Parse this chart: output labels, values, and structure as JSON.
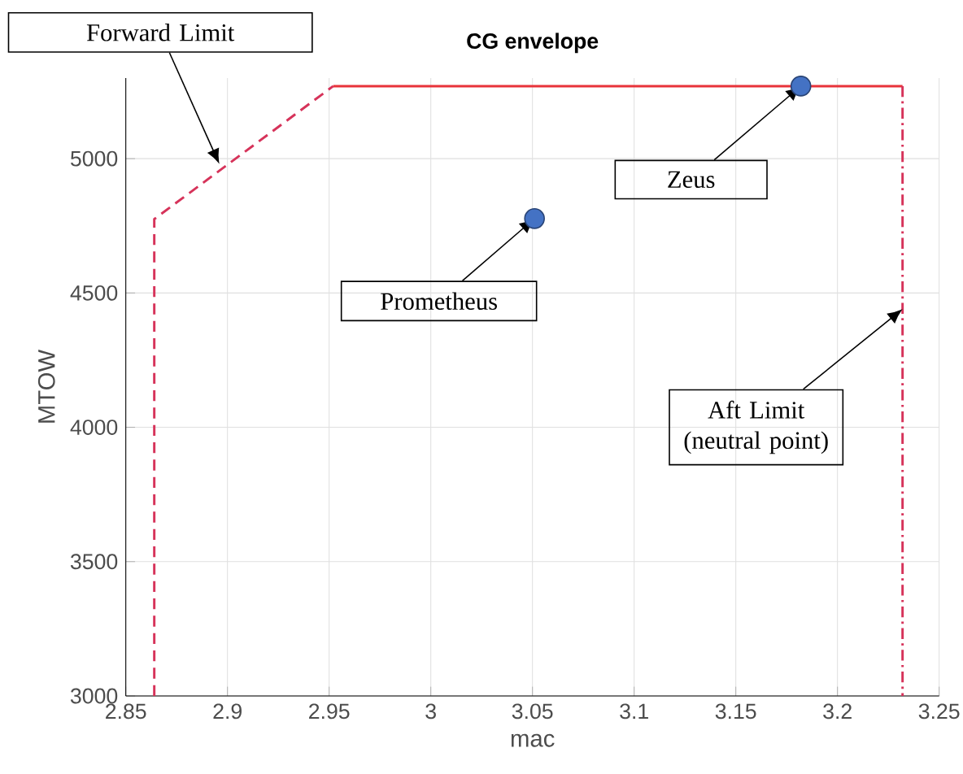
{
  "chart_data": {
    "type": "line",
    "title": "CG envelope",
    "xlabel": "mac",
    "ylabel": "MTOW",
    "xlim": [
      2.85,
      3.25
    ],
    "ylim": [
      3000,
      5300
    ],
    "xticks": [
      2.85,
      2.9,
      2.95,
      3,
      3.05,
      3.1,
      3.15,
      3.2,
      3.25
    ],
    "yticks": [
      3000,
      3500,
      4000,
      4500,
      5000
    ],
    "grid": true,
    "series": [
      {
        "type": "line",
        "color": "#d6335a",
        "line_style": "dashed",
        "x": [
          2.864,
          2.864,
          2.952
        ],
        "values": [
          3000,
          4775,
          5270
        ]
      },
      {
        "type": "line",
        "color": "#e8333a",
        "line_style": "solid",
        "x": [
          2.952,
          3.232
        ],
        "values": [
          5270,
          5270
        ]
      },
      {
        "type": "line",
        "color": "#d6335a",
        "line_style": "dashdot",
        "x": [
          3.232,
          3.232
        ],
        "values": [
          5270,
          3000
        ]
      },
      {
        "type": "scatter",
        "color": "#4472c4",
        "marker": "circle",
        "x": [
          3.051,
          3.182
        ],
        "values": [
          4777,
          5270
        ]
      }
    ],
    "annotations": [
      {
        "text": "Forward Limit",
        "x": 2.896,
        "y": 4980
      },
      {
        "text": "Zeus",
        "x": 3.182,
        "y": 5270
      },
      {
        "text": "Prometheus",
        "x": 3.051,
        "y": 4777
      },
      {
        "text": "Aft Limit (neutral point)",
        "x": 3.232,
        "y": 4440
      }
    ]
  }
}
